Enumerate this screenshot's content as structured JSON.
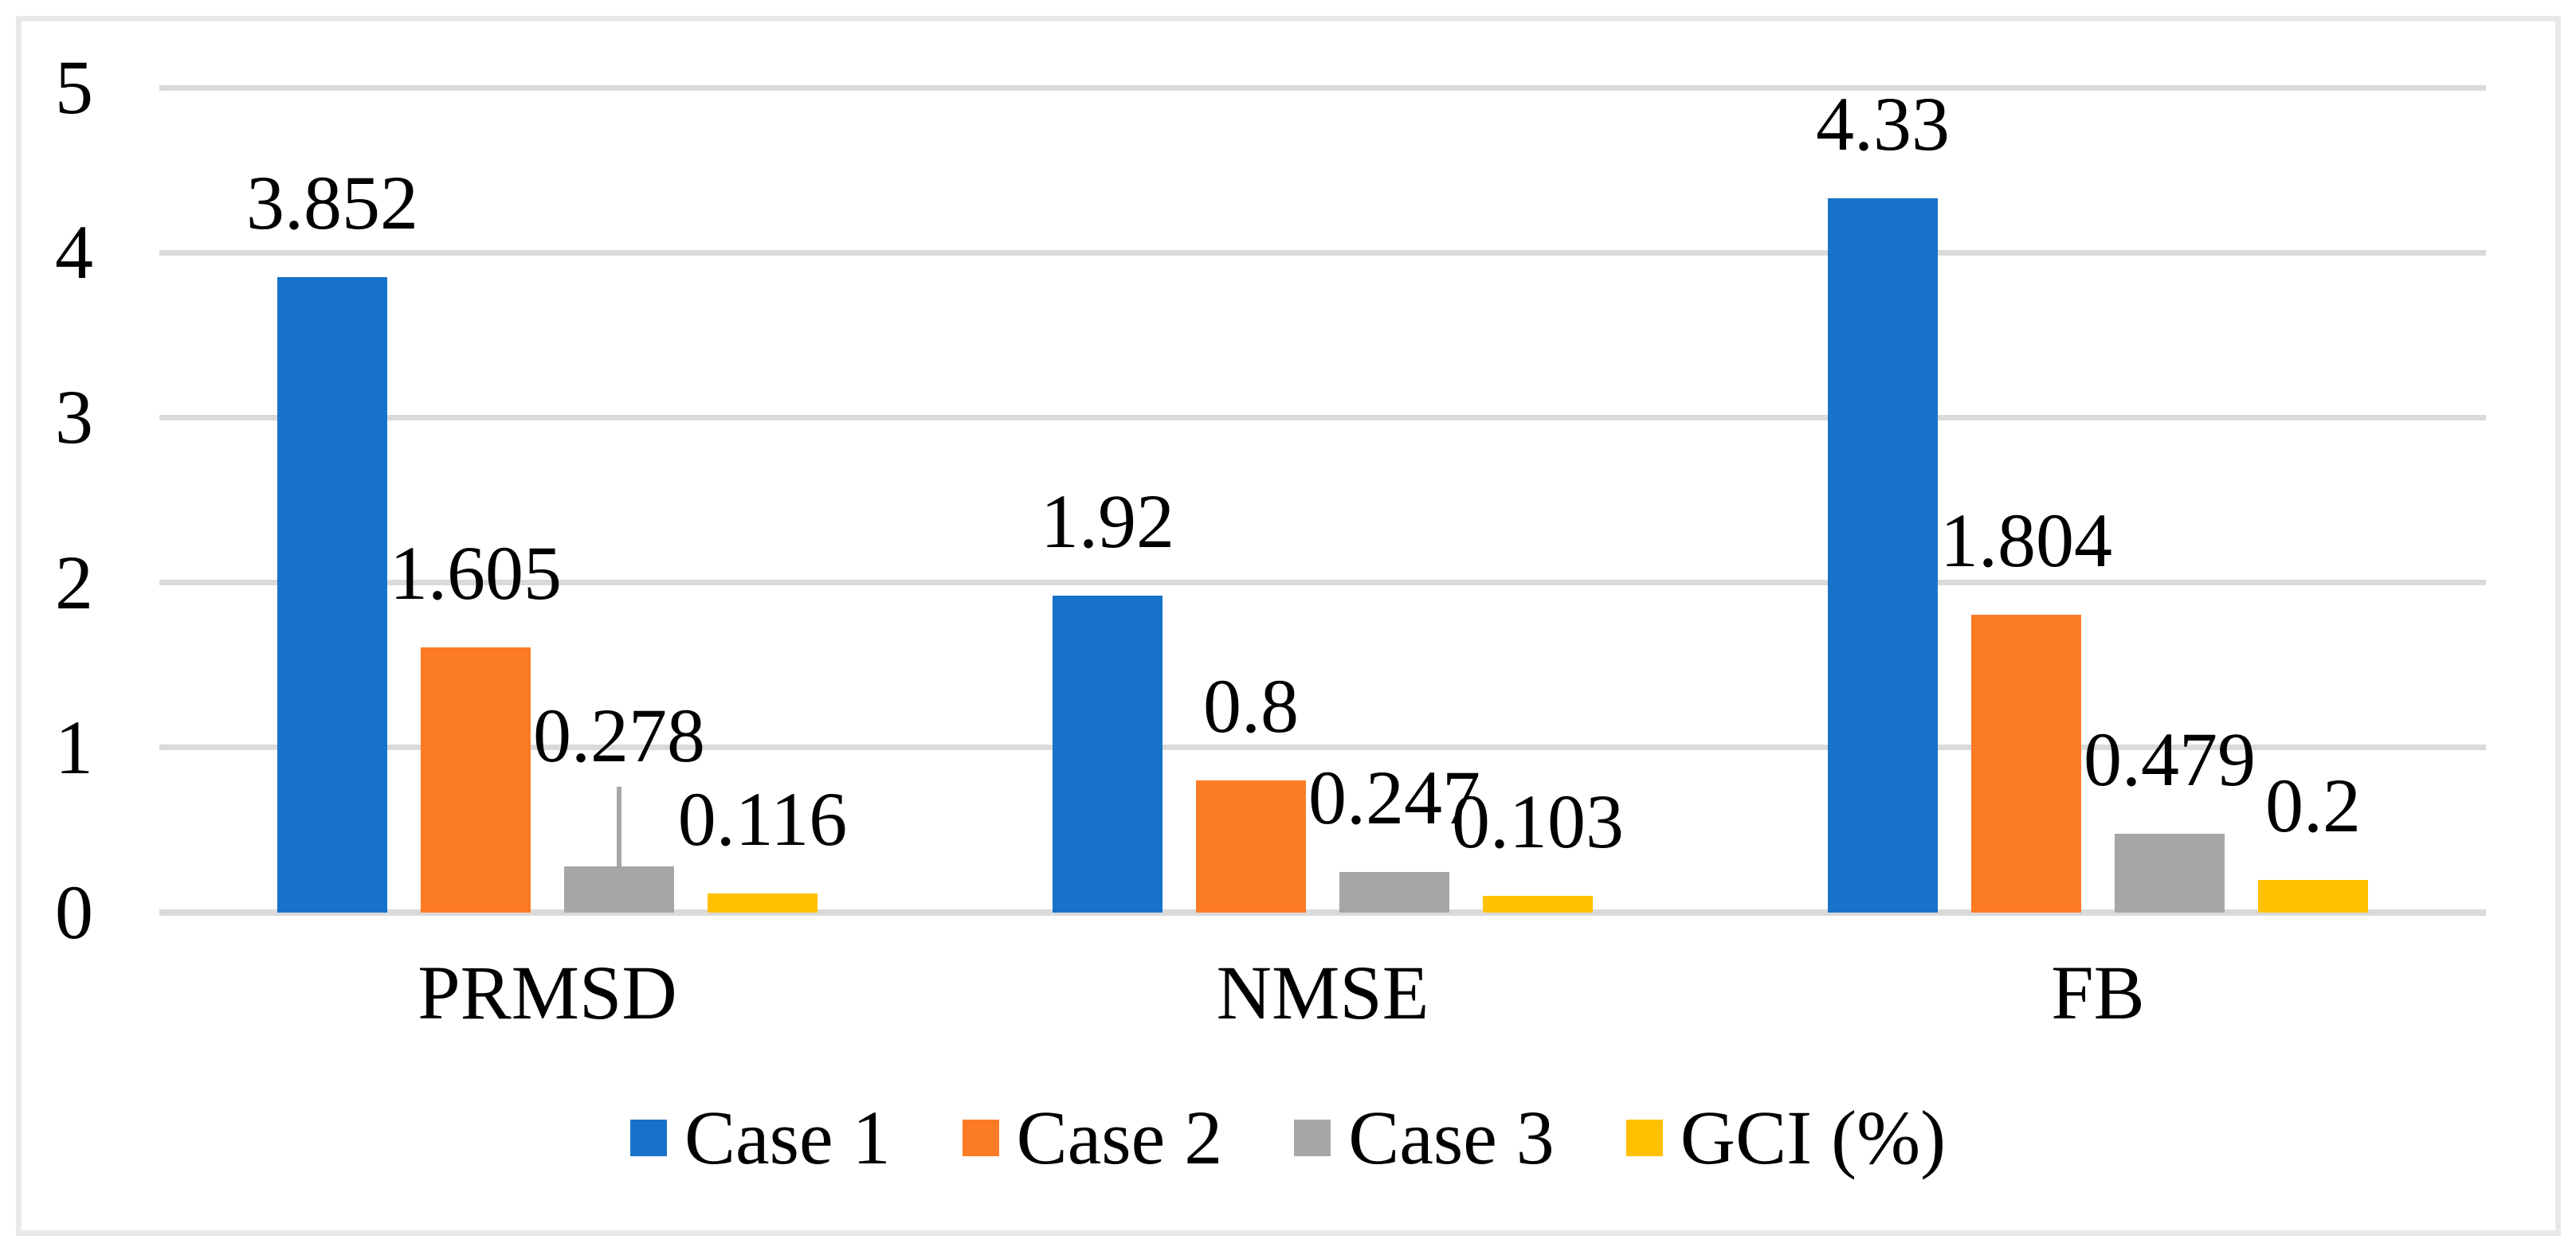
{
  "figure": {
    "background": "#FFFFFF",
    "border_color": "#E9E9E9"
  },
  "chart_data": {
    "type": "bar",
    "title": "",
    "xlabel": "",
    "ylabel": "",
    "categories": [
      "PRMSD",
      "NMSE",
      "FB"
    ],
    "series": [
      {
        "name": "Case 1",
        "color": "#1773C9",
        "values": [
          3.852,
          1.92,
          4.33
        ],
        "labels": [
          "3.852",
          "1.92",
          "4.33"
        ]
      },
      {
        "name": "Case 2",
        "color": "#FC7B25",
        "values": [
          1.605,
          0.8,
          1.804
        ],
        "labels": [
          "1.605",
          "0.8",
          "1.804"
        ]
      },
      {
        "name": "Case 3",
        "color": "#A6A6A6",
        "values": [
          0.278,
          0.247,
          0.479
        ],
        "labels": [
          "0.278",
          "0.247",
          "0.479"
        ]
      },
      {
        "name": "GCI (%)",
        "color": "#FFC000",
        "values": [
          0.116,
          0.103,
          0.2
        ],
        "labels": [
          "0.116",
          "0.103",
          "0.2"
        ]
      }
    ],
    "y_axis": {
      "min": 0,
      "max": 5,
      "ticks": [
        "0",
        "1",
        "2",
        "3",
        "4",
        "5"
      ]
    },
    "gridlines": true,
    "gridline_color": "#DADADA",
    "data_labels": true,
    "legend_position": "bottom",
    "label_overrides": [
      {
        "category": "PRMSD",
        "series": "Case 3",
        "raised": true,
        "leader_line": true
      }
    ]
  }
}
